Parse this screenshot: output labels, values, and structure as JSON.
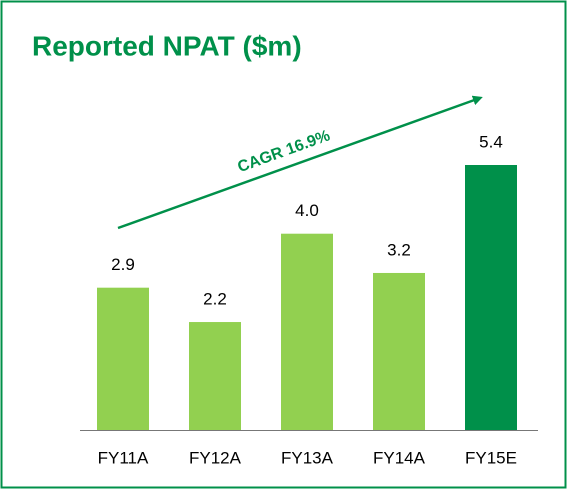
{
  "chart_data": {
    "type": "bar",
    "title": "Reported NPAT ($m)",
    "categories": [
      "FY11A",
      "FY12A",
      "FY13A",
      "FY14A",
      "FY15E"
    ],
    "values": [
      2.9,
      2.2,
      4.0,
      3.2,
      5.4
    ],
    "value_labels": [
      "2.9",
      "2.2",
      "4.0",
      "3.2",
      "5.4"
    ],
    "colors": [
      "#92d050",
      "#92d050",
      "#92d050",
      "#92d050",
      "#00904a"
    ],
    "annotation": "CAGR 16.9%"
  }
}
